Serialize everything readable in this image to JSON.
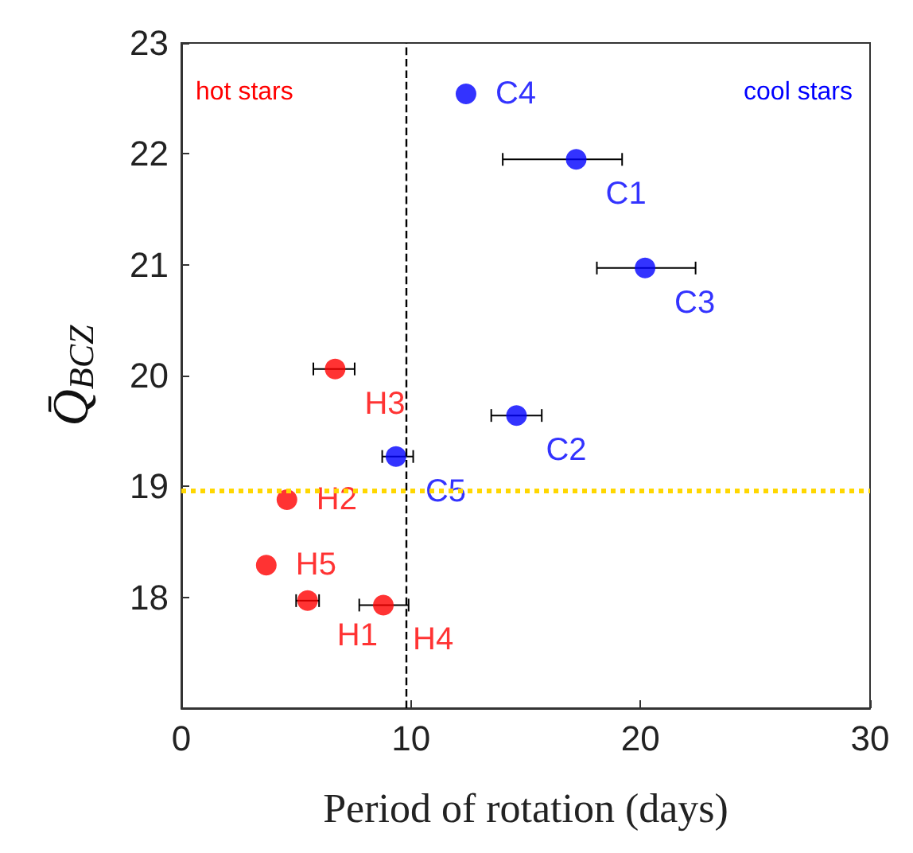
{
  "chart_data": {
    "type": "scatter",
    "xlabel": "Period of rotation (days)",
    "ylabel": "Q̄$_{BCZ}$",
    "series": [
      {
        "color": "#ff0000",
        "x": [
          6.7,
          4.6,
          3.7,
          5.5,
          8.8
        ],
        "values": [
          20.06,
          18.88,
          18.29,
          17.97,
          17.93
        ],
        "xerrors": [
          [
            5.75,
            7.55
          ],
          null,
          null,
          [
            5.0,
            6.0
          ],
          [
            7.75,
            9.9
          ]
        ],
        "value_labels": [
          "H3",
          "H2",
          "H5",
          "H1",
          "H4"
        ]
      },
      {
        "color": "#0000ff",
        "x": [
          12.4,
          17.2,
          20.2,
          14.6,
          9.35
        ],
        "values": [
          22.54,
          21.95,
          20.97,
          19.64,
          19.27
        ],
        "xerrors": [
          null,
          [
            14.0,
            19.2
          ],
          [
            18.1,
            22.4
          ],
          [
            13.5,
            15.7
          ],
          [
            8.75,
            10.1
          ]
        ],
        "value_labels": [
          "C4",
          "C1",
          "C3",
          "C2",
          "C5"
        ]
      }
    ],
    "annotations": [
      "hot stars",
      "cool stars"
    ],
    "ref_lines": [
      {
        "axis": "x",
        "value": 9.8,
        "color": "#000000",
        "line_style": "dashed"
      },
      {
        "axis": "y",
        "value": 18.97,
        "color": "#ffd700",
        "line_style": "dotted"
      }
    ],
    "xlim": [
      0,
      30
    ],
    "xticks": [
      0,
      10,
      20,
      30
    ],
    "ylim": [
      17,
      23
    ],
    "yticks": [
      18,
      19,
      20,
      21,
      22,
      23
    ],
    "marker": "circle",
    "grid": false
  }
}
